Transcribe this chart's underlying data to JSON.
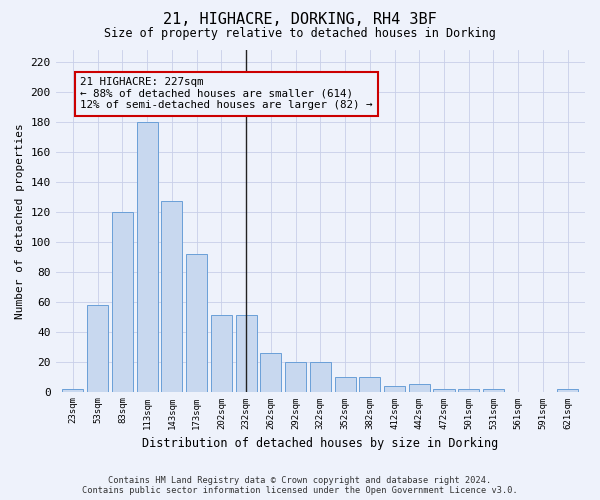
{
  "title": "21, HIGHACRE, DORKING, RH4 3BF",
  "subtitle": "Size of property relative to detached houses in Dorking",
  "xlabel": "Distribution of detached houses by size in Dorking",
  "ylabel": "Number of detached properties",
  "bar_color": "#c8d8ef",
  "bar_edge_color": "#6a9fd8",
  "background_color": "#eef2fb",
  "grid_color": "#c8cfe8",
  "categories": [
    "23sqm",
    "53sqm",
    "83sqm",
    "113sqm",
    "143sqm",
    "173sqm",
    "202sqm",
    "232sqm",
    "262sqm",
    "292sqm",
    "322sqm",
    "352sqm",
    "382sqm",
    "412sqm",
    "442sqm",
    "472sqm",
    "501sqm",
    "531sqm",
    "561sqm",
    "591sqm",
    "621sqm"
  ],
  "values": [
    2,
    58,
    120,
    180,
    127,
    92,
    51,
    51,
    26,
    20,
    20,
    10,
    10,
    4,
    5,
    2,
    2,
    2,
    0,
    0,
    2
  ],
  "ylim": [
    0,
    228
  ],
  "yticks": [
    0,
    20,
    40,
    60,
    80,
    100,
    120,
    140,
    160,
    180,
    200,
    220
  ],
  "vline_x_idx": 7,
  "annotation_text": "21 HIGHACRE: 227sqm\n← 88% of detached houses are smaller (614)\n12% of semi-detached houses are larger (82) →",
  "footnote1": "Contains HM Land Registry data © Crown copyright and database right 2024.",
  "footnote2": "Contains public sector information licensed under the Open Government Licence v3.0."
}
